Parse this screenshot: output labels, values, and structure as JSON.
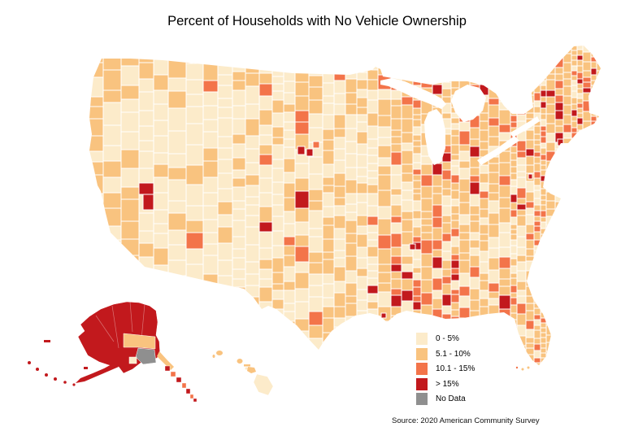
{
  "title": "Percent of Households with No Vehicle Ownership",
  "source": "Source: 2020 American Community Survey",
  "legend": {
    "items": [
      {
        "label": "0 - 5%",
        "color": "#FCEBCA"
      },
      {
        "label": "5.1 - 10%",
        "color": "#F9C37F"
      },
      {
        "label": "10.1 - 15%",
        "color": "#F3744A"
      },
      {
        "label": "> 15%",
        "color": "#C2191D"
      },
      {
        "label": "No Data",
        "color": "#8F8F8F"
      }
    ]
  },
  "chart_data": {
    "type": "choropleth",
    "title": "Percent of Households with No Vehicle Ownership",
    "variable": "Percent of households with no vehicle ownership",
    "geography": "United States counties, with Alaska and Hawaii insets at bottom left",
    "classes": [
      {
        "range": "0 - 5%",
        "color": "#FCEBCA"
      },
      {
        "range": "5.1 - 10%",
        "color": "#F9C37F"
      },
      {
        "range": "10.1 - 15%",
        "color": "#F3744A"
      },
      {
        "range": "> 15%",
        "color": "#C2191D"
      },
      {
        "range": "No Data",
        "color": "#8F8F8F"
      }
    ],
    "legend_position": "bottom-right area of map, above source note",
    "source": "2020 American Community Survey",
    "observed_patterns": [
      "Alaska is predominantly > 15% (dark red), with one gray No Data borough in south-central Alaska and a few 5.1 - 10% areas near it",
      "Mountain West, Great Basin and Great Plains counties are predominantly 0 - 5% (cream)",
      "Pacific coast counties are mostly 5.1 - 10% (light orange)",
      "Northeast and upper New England are predominantly 5.1 - 10% with scattered 10.1 - 15% counties and > 15% spots around New York City",
      "Clusters of 10.1 - 15% and > 15% counties along the Mississippi Delta and the Southern Black Belt",
      "Isolated > 15% counties in central Nevada and South Dakota",
      "Hawaii islands range 0 - 5% (Big Island) to 5.1 - 10% (Kauai, Oahu, Maui)",
      "Florida peninsula mostly 0 - 5% and 5.1 - 10% with a 10.1 - 15% county near Miami"
    ]
  }
}
